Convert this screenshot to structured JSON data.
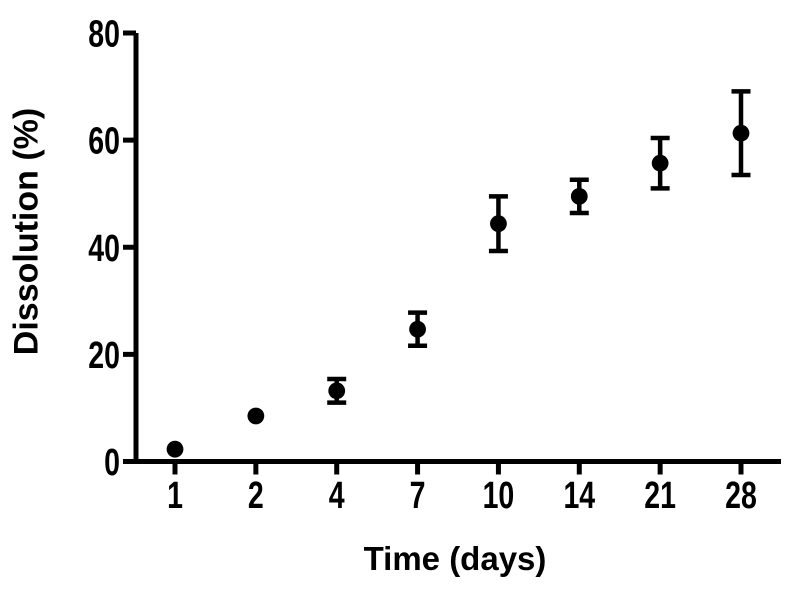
{
  "chart_data": {
    "type": "scatter",
    "title": "",
    "xlabel": "Time (days)",
    "ylabel": "Dissolution (%)",
    "categories": [
      "1",
      "2",
      "4",
      "7",
      "10",
      "14",
      "21",
      "28"
    ],
    "series": [
      {
        "name": "Dissolution",
        "values": [
          2.3,
          8.5,
          13.2,
          24.7,
          44.4,
          49.5,
          55.7,
          61.3
        ],
        "errors": [
          0,
          0,
          2.2,
          3.1,
          5.1,
          3.1,
          4.7,
          7.8
        ]
      }
    ],
    "ylim": [
      0,
      80
    ],
    "yticks": [
      0,
      20,
      40,
      60,
      80
    ],
    "xtick_style": "equally-spaced categorical",
    "error_bar_style": "symmetric with caps",
    "marker": "filled-circle",
    "grid": false,
    "legend": "none",
    "colors": {
      "foreground": "#000000",
      "background": "#ffffff"
    }
  }
}
